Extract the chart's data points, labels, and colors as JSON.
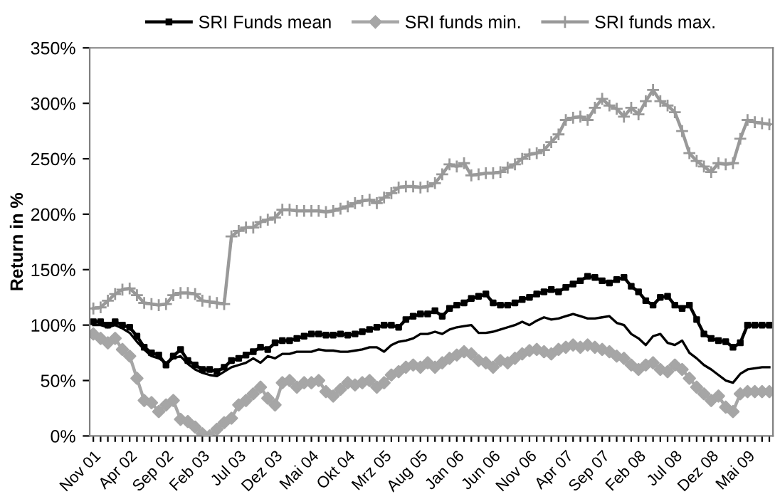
{
  "chart_data": {
    "type": "line",
    "ylabel": "Return in %",
    "categories": [
      "Nov 01",
      null,
      null,
      null,
      null,
      "Apr 02",
      null,
      null,
      null,
      null,
      "Sep 02",
      null,
      null,
      null,
      null,
      "Feb 03",
      null,
      null,
      null,
      null,
      "Jul 03",
      null,
      null,
      null,
      null,
      "Dez 03",
      null,
      null,
      null,
      null,
      "Mai 04",
      null,
      null,
      null,
      null,
      "Okt 04",
      null,
      null,
      null,
      null,
      "Mrz 05",
      null,
      null,
      null,
      null,
      "Aug 05",
      null,
      null,
      null,
      null,
      "Jan 06",
      null,
      null,
      null,
      null,
      "Jun 06",
      null,
      null,
      null,
      null,
      "Nov 06",
      null,
      null,
      null,
      null,
      "Apr 07",
      null,
      null,
      null,
      null,
      "Sep 07",
      null,
      null,
      null,
      null,
      "Feb 08",
      null,
      null,
      null,
      null,
      "Jul 08",
      null,
      null,
      null,
      null,
      "Dez 08",
      null,
      null,
      null,
      null,
      "Mai 09",
      null,
      null,
      null
    ],
    "ylim": [
      0,
      350
    ],
    "yticks": [
      {
        "value": 0,
        "label": "0%"
      },
      {
        "value": 50,
        "label": "50%"
      },
      {
        "value": 100,
        "label": "100%"
      },
      {
        "value": 150,
        "label": "150%"
      },
      {
        "value": 200,
        "label": "200%"
      },
      {
        "value": 250,
        "label": "250%"
      },
      {
        "value": 300,
        "label": "300%"
      },
      {
        "value": 350,
        "label": "350%"
      }
    ],
    "grid": false,
    "legend": "top",
    "series": [
      {
        "name": "SRI Funds mean",
        "color": "#000000",
        "marker": "square",
        "values": [
          103,
          103,
          100,
          103,
          100,
          98,
          90,
          80,
          75,
          73,
          64,
          72,
          78,
          68,
          64,
          60,
          60,
          58,
          62,
          68,
          70,
          73,
          76,
          80,
          78,
          84,
          86,
          86,
          88,
          90,
          92,
          92,
          91,
          91,
          92,
          91,
          92,
          94,
          96,
          98,
          100,
          100,
          98,
          105,
          108,
          110,
          110,
          113,
          108,
          115,
          118,
          120,
          124,
          126,
          128,
          120,
          118,
          118,
          120,
          123,
          125,
          128,
          130,
          132,
          130,
          134,
          137,
          140,
          144,
          143,
          140,
          138,
          141,
          143,
          135,
          130,
          122,
          118,
          125,
          126,
          118,
          115,
          118,
          105,
          92,
          88,
          86,
          85,
          80,
          84,
          100,
          100,
          100,
          100
        ]
      },
      {
        "color": "#000000",
        "marker": "none",
        "values": [
          100,
          100,
          98,
          100,
          97,
          93,
          85,
          78,
          72,
          70,
          66,
          70,
          72,
          65,
          60,
          57,
          55,
          54,
          58,
          62,
          64,
          66,
          70,
          66,
          72,
          70,
          74,
          74,
          76,
          76,
          76,
          78,
          77,
          77,
          76,
          76,
          77,
          78,
          80,
          80,
          76,
          82,
          85,
          86,
          88,
          92,
          92,
          94,
          92,
          96,
          98,
          99,
          100,
          93,
          93,
          94,
          96,
          98,
          100,
          103,
          100,
          104,
          107,
          105,
          106,
          108,
          110,
          108,
          106,
          106,
          107,
          108,
          102,
          100,
          92,
          88,
          82,
          90,
          92,
          84,
          82,
          86,
          75,
          70,
          64,
          60,
          55,
          50,
          48,
          56,
          60,
          61,
          62,
          62
        ]
      },
      {
        "name": "SRI funds min.",
        "color": "#a6a6a6",
        "marker": "diamond",
        "values": [
          92,
          88,
          84,
          88,
          78,
          72,
          52,
          32,
          30,
          22,
          28,
          32,
          15,
          13,
          8,
          2,
          0,
          6,
          12,
          16,
          28,
          32,
          38,
          44,
          34,
          28,
          48,
          50,
          44,
          48,
          48,
          50,
          40,
          36,
          42,
          48,
          46,
          48,
          50,
          44,
          48,
          55,
          58,
          62,
          64,
          62,
          66,
          62,
          66,
          70,
          73,
          76,
          74,
          68,
          66,
          62,
          68,
          66,
          70,
          74,
          77,
          78,
          76,
          74,
          78,
          80,
          82,
          80,
          82,
          80,
          78,
          76,
          72,
          70,
          64,
          60,
          64,
          66,
          60,
          58,
          64,
          60,
          52,
          44,
          38,
          32,
          36,
          26,
          22,
          38,
          40,
          40,
          40,
          40
        ]
      },
      {
        "name": "SRI funds max.",
        "color": "#999999",
        "marker": "cross",
        "values": [
          115,
          116,
          122,
          128,
          132,
          133,
          127,
          120,
          119,
          118,
          119,
          127,
          129,
          129,
          128,
          122,
          121,
          120,
          119,
          180,
          185,
          188,
          188,
          193,
          195,
          197,
          204,
          204,
          203,
          203,
          203,
          203,
          202,
          203,
          205,
          207,
          210,
          212,
          213,
          210,
          215,
          219,
          224,
          225,
          225,
          224,
          225,
          228,
          236,
          245,
          243,
          246,
          235,
          236,
          237,
          237,
          238,
          242,
          245,
          250,
          254,
          255,
          258,
          265,
          272,
          285,
          287,
          288,
          285,
          296,
          304,
          298,
          295,
          288,
          296,
          290,
          302,
          312,
          302,
          298,
          292,
          275,
          255,
          248,
          243,
          238,
          246,
          245,
          246,
          268,
          285,
          283,
          282,
          281
        ]
      }
    ]
  }
}
